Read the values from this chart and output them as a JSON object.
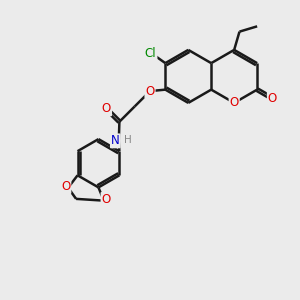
{
  "background_color": "#ebebeb",
  "bond_color": "#1a1a1a",
  "bond_width": 1.8,
  "dbo": 0.055,
  "atom_colors": {
    "O": "#e00000",
    "N": "#0000cc",
    "Cl": "#008800",
    "H": "#888888"
  },
  "font_size": 8.5,
  "fig_size": [
    3.0,
    3.0
  ],
  "dpi": 100
}
